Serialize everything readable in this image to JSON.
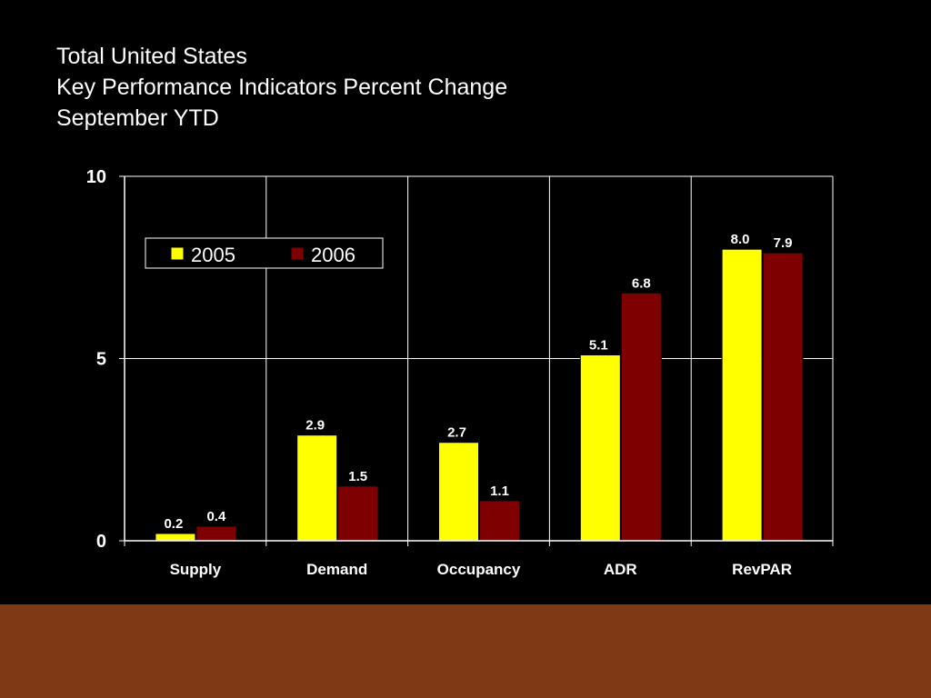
{
  "slide": {
    "title_lines": [
      "Total United States",
      "Key Performance Indicators Percent Change",
      "September YTD"
    ]
  },
  "colors": {
    "background": "#000000",
    "footer_band": "#7f3a15",
    "text": "#ffffff",
    "gridline": "#ffffff"
  },
  "chart_data": {
    "type": "bar",
    "title": "",
    "xlabel": "",
    "ylabel": "",
    "categories": [
      "Supply",
      "Demand",
      "Occupancy",
      "ADR",
      "RevPAR"
    ],
    "series": [
      {
        "name": "2005",
        "color": "#ffff00",
        "values": [
          0.2,
          2.9,
          2.7,
          5.1,
          8.0
        ],
        "labels": [
          "0.2",
          "2.9",
          "2.7",
          "5.1",
          "8.0"
        ]
      },
      {
        "name": "2006",
        "color": "#7f0000",
        "values": [
          0.4,
          1.5,
          1.1,
          6.8,
          7.9
        ],
        "labels": [
          "0.4",
          "1.5",
          "1.1",
          "6.8",
          "7.9"
        ]
      }
    ],
    "ylim": [
      0,
      10
    ],
    "yticks": [
      0,
      5,
      10
    ],
    "ytick_labels": [
      "0",
      "5",
      "10"
    ],
    "grid": true,
    "legend_position": "top-left"
  }
}
